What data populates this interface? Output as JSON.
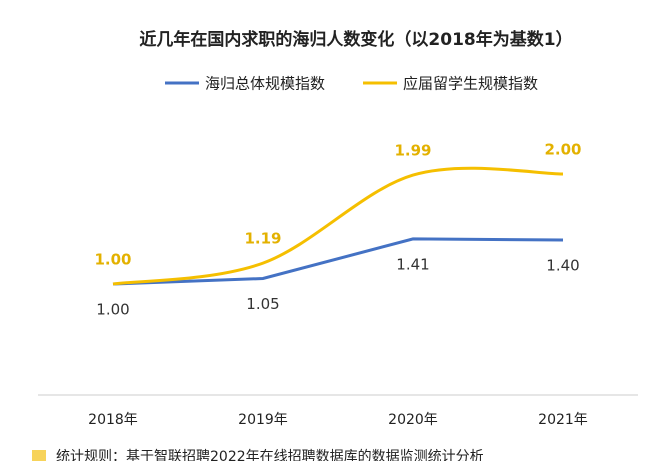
{
  "chart_data": {
    "type": "line",
    "title": "近几年在国内求职的海归人数变化（以2018年为基数1）",
    "categories": [
      "2018年",
      "2019年",
      "2020年",
      "2021年"
    ],
    "series": [
      {
        "name": "海归总体规模指数",
        "color": "#4472c4",
        "smooth": false,
        "label_position": "below",
        "values": [
          1.0,
          1.05,
          1.41,
          1.4
        ],
        "value_labels": [
          "1.00",
          "1.05",
          "1.41",
          "1.40"
        ]
      },
      {
        "name": "应届留学生规模指数",
        "color": "#f5bf00",
        "smooth": true,
        "label_position": "above",
        "values": [
          1.0,
          1.19,
          1.99,
          2.0
        ],
        "value_labels": [
          "1.00",
          "1.19",
          "1.99",
          "2.00"
        ]
      }
    ],
    "ylim": [
      0,
      2.7
    ],
    "note": "统计规则：基于智联招聘2022年在线招聘数据库的数据监测统计分析"
  }
}
